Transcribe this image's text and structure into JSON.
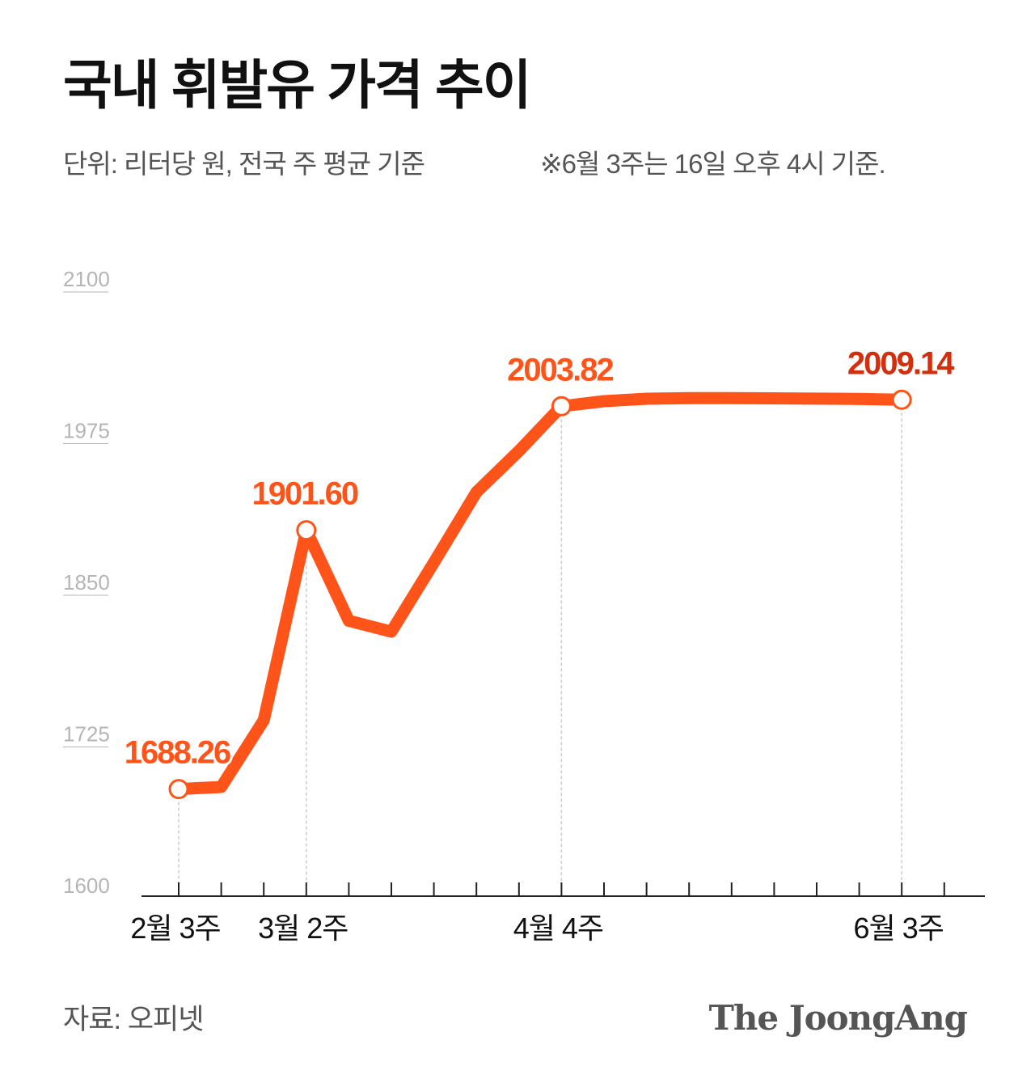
{
  "header": {
    "title": "국내 휘발유 가격 추이",
    "subtitle": "단위: 리터당 원, 전국 주 평균 기준",
    "note": "※6월 3주는 16일 오후 4시 기준."
  },
  "footer": {
    "source": "자료: 오피넷",
    "logo": "The JoongAng"
  },
  "colors": {
    "line": "#ff5419",
    "label": "#ff5419",
    "label_last": "#d32f0e",
    "axis": "#222222",
    "guide": "#cccccc",
    "ytick": "#b5b5b5"
  },
  "chart_data": {
    "type": "line",
    "title": "국내 휘발유 가격 추이",
    "unit": "단위: 리터당 원, 전국 주 평균 기준",
    "ylim": [
      1600,
      2100
    ],
    "yticks": [
      1600,
      1725,
      1850,
      1975,
      2100
    ],
    "x_labels": [
      "2월 3주",
      "",
      "",
      "3월 2주",
      "",
      "",
      "",
      "",
      "",
      "4월 4주",
      "",
      "",
      "",
      "",
      "",
      "",
      "",
      "6월 3주"
    ],
    "values": [
      1688.26,
      1690,
      1745,
      1901.6,
      1827,
      1818,
      1875,
      1933,
      1967,
      2003.82,
      2008,
      2010,
      2010.5,
      2010.5,
      2010.3,
      2010.1,
      2009.8,
      2009.14
    ],
    "labels": [
      "1688.26",
      "",
      "",
      "1901.60",
      "",
      "",
      "",
      "",
      "",
      "2003.82",
      "",
      "",
      "",
      "",
      "",
      "",
      "",
      "2009.14"
    ],
    "grid": false,
    "legend": "none"
  }
}
